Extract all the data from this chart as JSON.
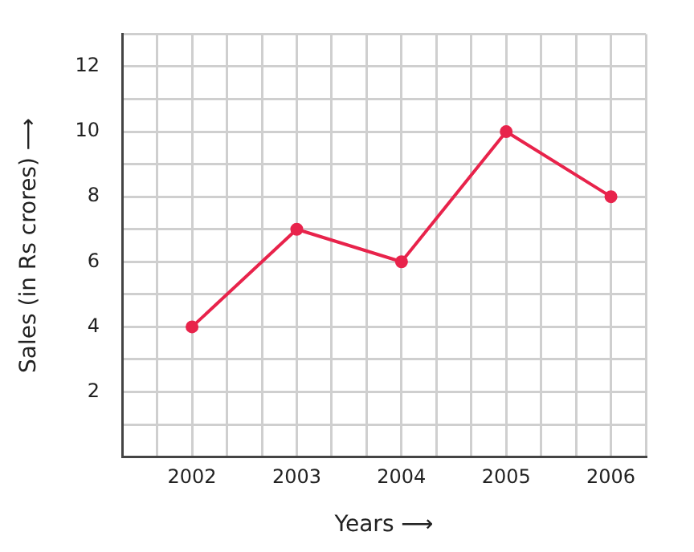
{
  "chart_data": {
    "type": "line",
    "xlabel": "Years ⟶",
    "ylabel": "Sales (in Rs crores) ⟶",
    "x": [
      2002,
      2003,
      2004,
      2005,
      2006
    ],
    "series": [
      {
        "color": "#e8234b",
        "values": [
          4,
          7,
          6,
          10,
          8
        ]
      }
    ],
    "xlim": [
      2001.333,
      2006.333
    ],
    "xticks": [
      {
        "value": 2001.667,
        "label": null
      },
      2002,
      {
        "value": 2002.333,
        "label": null
      },
      {
        "value": 2002.667,
        "label": null
      },
      2003,
      {
        "value": 2003.333,
        "label": null
      },
      {
        "value": 2003.667,
        "label": null
      },
      2004,
      {
        "value": 2004.333,
        "label": null
      },
      {
        "value": 2004.667,
        "label": null
      },
      2005,
      {
        "value": 2005.333,
        "label": null
      },
      {
        "value": 2005.667,
        "label": null
      },
      2006,
      {
        "value": 2006.333,
        "label": null
      }
    ],
    "ylim": [
      0,
      13
    ],
    "yticks": [
      {
        "value": 1,
        "label": null
      },
      2,
      {
        "value": 3,
        "label": null
      },
      4,
      {
        "value": 5,
        "label": null
      },
      6,
      {
        "value": 7,
        "label": null
      },
      8,
      {
        "value": 9,
        "label": null
      },
      10,
      {
        "value": 11,
        "label": null
      },
      12,
      {
        "value": 13,
        "label": null
      }
    ],
    "grid": true,
    "legend": false,
    "marker": "circle",
    "line_style": "solid"
  }
}
